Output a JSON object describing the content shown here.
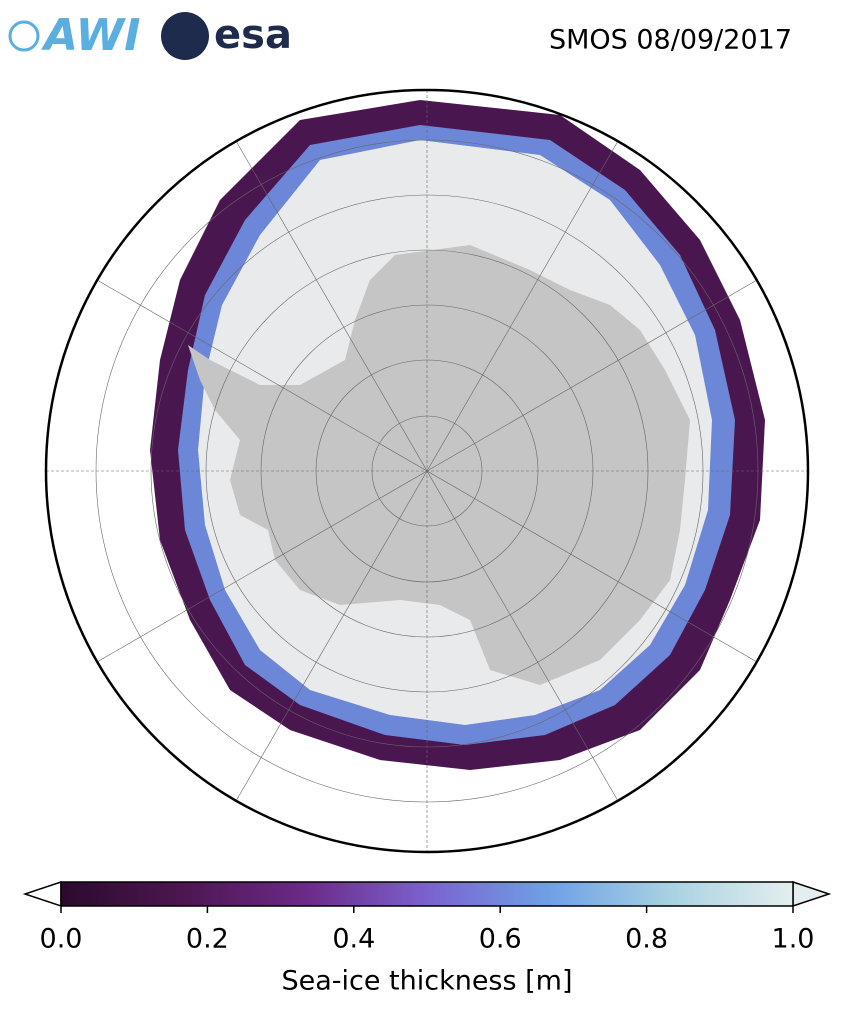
{
  "header": {
    "logos": [
      "AWI",
      "esa"
    ],
    "title": "SMOS 08/09/2017"
  },
  "colorbar": {
    "label": "Sea-ice thickness [m]",
    "lim": [
      0,
      1
    ],
    "ticks": [
      {
        "value": 0,
        "label": "0.0"
      },
      {
        "value": 0.2,
        "label": "0.2"
      },
      {
        "value": 0.4,
        "label": "0.4"
      },
      {
        "value": 0.6,
        "label": "0.6"
      },
      {
        "value": 0.8,
        "label": "0.8"
      },
      {
        "value": 1,
        "label": "1.0"
      }
    ],
    "colors": [
      "#2b0a2c",
      "#4d1651",
      "#6b2a87",
      "#7b62cf",
      "#6ea0e6",
      "#a8d2e2",
      "#e4eeee"
    ]
  }
}
